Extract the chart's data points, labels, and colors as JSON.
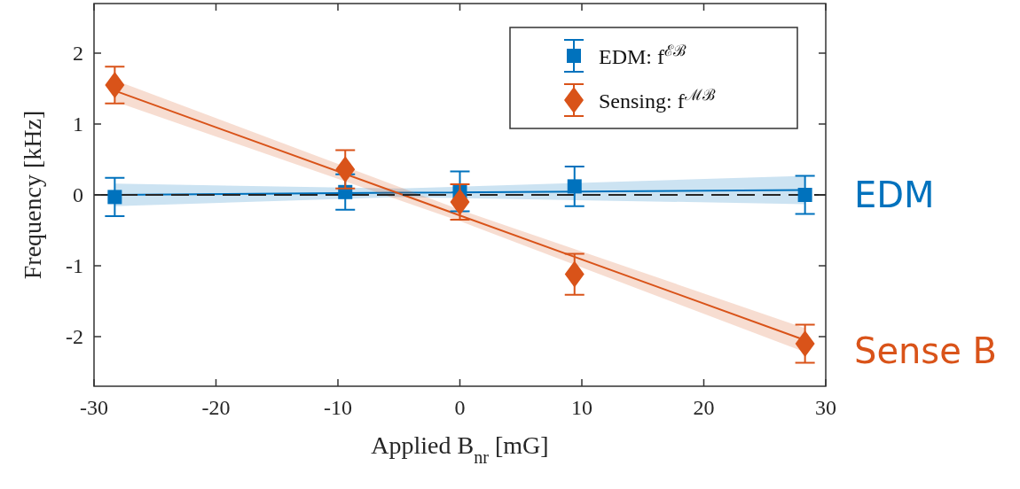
{
  "chart_data": {
    "type": "scatter",
    "xlabel": "Applied B$_{nr}$ [mG]",
    "ylabel": "Frequency [kHz]",
    "xlim": [
      -30,
      30
    ],
    "xticks": [
      -30,
      -20,
      -10,
      0,
      10,
      20,
      30
    ],
    "ylim": [
      -2.7,
      2.7
    ],
    "yticks": [
      -2,
      -1,
      0,
      1,
      2
    ],
    "grid": false,
    "legend": "top right",
    "series": [
      {
        "type": "line",
        "color": "#0072bd",
        "x": [
          -28.3,
          -5,
          28.3
        ],
        "values": [
          0.0,
          0.03,
          0.07
        ],
        "lower": [
          -0.16,
          -0.03,
          -0.13
        ],
        "upper": [
          0.16,
          0.09,
          0.27
        ],
        "marker": "none"
      },
      {
        "type": "line",
        "color": "#d95319",
        "x": [
          -28.3,
          0,
          28.3
        ],
        "values": [
          1.47,
          -0.29,
          -2.05
        ],
        "lower": [
          1.32,
          -0.37,
          -2.22
        ],
        "upper": [
          1.62,
          -0.21,
          -1.88
        ],
        "marker": "none"
      },
      {
        "name": "EDM: f$^{ℰℬ}$",
        "color": "#0072bd",
        "marker": "square",
        "x": [
          -28.3,
          -9.4,
          0,
          9.4,
          28.3
        ],
        "values": [
          -0.03,
          0.04,
          0.05,
          0.12,
          0.0
        ],
        "errors": [
          0.27,
          0.25,
          0.28,
          0.28,
          0.27
        ]
      },
      {
        "name": "Sensing: f$^{ℳℬ}$",
        "color": "#d95319",
        "marker": "diamond",
        "x": [
          -28.3,
          -9.4,
          0,
          9.4,
          28.3
        ],
        "values": [
          1.55,
          0.36,
          -0.1,
          -1.12,
          -2.1
        ],
        "errors": [
          0.26,
          0.27,
          0.25,
          0.29,
          0.27
        ]
      }
    ],
    "ref_lines": [
      {
        "axis": "y",
        "value": 0,
        "color": "#262626",
        "line_style": "dashed"
      }
    ],
    "annotations": [
      "EDM",
      "Sense B"
    ]
  }
}
